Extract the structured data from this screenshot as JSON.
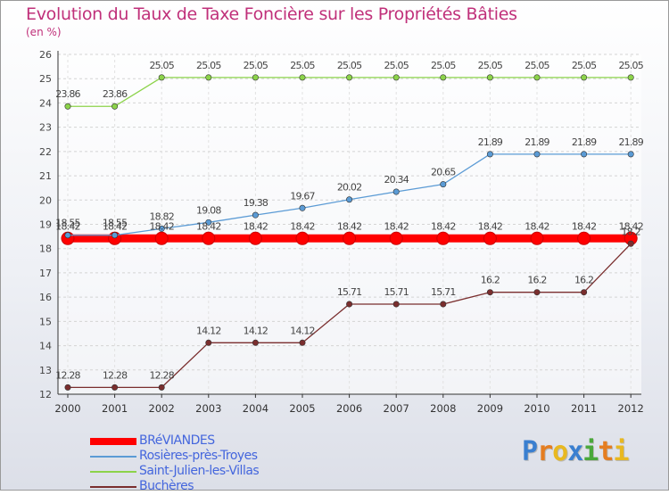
{
  "chart_data": {
    "type": "line",
    "title": "Evolution du Taux de Taxe Foncière sur les Propriétés Bâties",
    "ylabel": "(en %)",
    "xlabel": "",
    "x": [
      "2000",
      "2001",
      "2002",
      "2003",
      "2004",
      "2005",
      "2006",
      "2007",
      "2008",
      "2009",
      "2010",
      "2011",
      "2012"
    ],
    "ylim": [
      12,
      26
    ],
    "yticks": [
      12,
      13,
      14,
      15,
      16,
      17,
      18,
      19,
      20,
      21,
      22,
      23,
      24,
      25,
      26
    ],
    "grid": "horizontal dashed",
    "legend_position": "bottom-left",
    "series": [
      {
        "name": "BRéVIANDES",
        "color": "#ff0000",
        "values": [
          18.42,
          18.42,
          18.42,
          18.42,
          18.42,
          18.42,
          18.42,
          18.42,
          18.42,
          18.42,
          18.42,
          18.42,
          18.42
        ]
      },
      {
        "name": "Rosières-près-Troyes",
        "color": "#5b9bd5",
        "values": [
          18.55,
          18.55,
          18.82,
          19.08,
          19.38,
          19.67,
          20.02,
          20.34,
          20.65,
          21.89,
          21.89,
          21.89,
          21.89
        ]
      },
      {
        "name": "Saint-Julien-les-Villas",
        "color": "#8cd34a",
        "values": [
          23.86,
          23.86,
          25.05,
          25.05,
          25.05,
          25.05,
          25.05,
          25.05,
          25.05,
          25.05,
          25.05,
          25.05,
          25.05
        ]
      },
      {
        "name": "Buchères",
        "color": "#7a2e2e",
        "values": [
          12.28,
          12.28,
          12.28,
          14.12,
          14.12,
          14.12,
          15.71,
          15.71,
          15.71,
          16.2,
          16.2,
          16.2,
          18.2
        ]
      }
    ]
  },
  "value_labels": {
    "BRéVIANDES": [
      "18.42",
      "18.42",
      "18.42",
      "18.42",
      "18.42",
      "18.42",
      "18.42",
      "18.42",
      "18.42",
      "18.42",
      "18.42",
      "18.42",
      "18.42"
    ],
    "Rosières-près-Troyes": [
      "18.55",
      "18.55",
      "18.82",
      "19.08",
      "19.38",
      "19.67",
      "20.02",
      "20.34",
      "20.65",
      "21.89",
      "21.89",
      "21.89",
      "21.89"
    ],
    "Saint-Julien-les-Villas": [
      "23.86",
      "23.86",
      "25.05",
      "25.05",
      "25.05",
      "25.05",
      "25.05",
      "25.05",
      "25.05",
      "25.05",
      "25.05",
      "25.05",
      "25.05"
    ],
    "Buchères": [
      "12.28",
      "12.28",
      "12.28",
      "14.12",
      "14.12",
      "14.12",
      "15.71",
      "15.71",
      "15.71",
      "16.2",
      "16.2",
      "16.2",
      "18.2"
    ]
  },
  "logo": {
    "letters": [
      "P",
      "r",
      "o",
      "x",
      "i",
      "t",
      "i"
    ],
    "colors": [
      "#3a7fd0",
      "#e57d20",
      "#e8b820",
      "#3a7fd0",
      "#4aa83a",
      "#e57d20",
      "#e8b820"
    ]
  }
}
